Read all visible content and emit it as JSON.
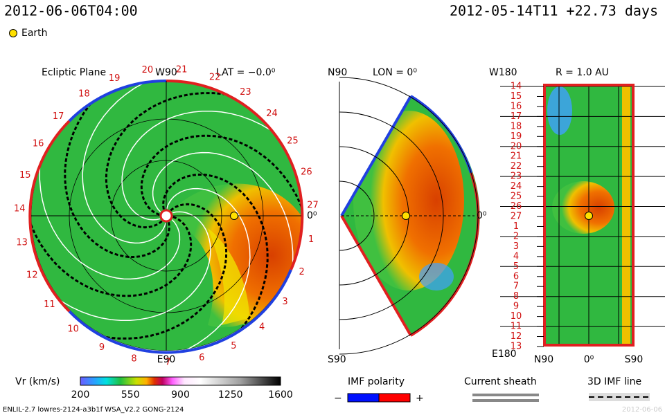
{
  "header": {
    "left": "2012-06-06T04:00",
    "right": "2012-05-14T11 +22.73 days"
  },
  "legend": {
    "earth": "Earth"
  },
  "ecliptic": {
    "title": "Ecliptic Plane",
    "top": "W90",
    "bottom": "E90",
    "right": "0⁰",
    "lat": "LAT = −0.0⁰",
    "carrington": [
      "1",
      "2",
      "3",
      "4",
      "5",
      "6",
      "7",
      "8",
      "9",
      "10",
      "11",
      "12",
      "13",
      "14",
      "15",
      "16",
      "17",
      "18",
      "19",
      "20",
      "21",
      "22",
      "23",
      "24",
      "25",
      "26",
      "27"
    ]
  },
  "meridional": {
    "top": "N90",
    "title": "LON = 0⁰",
    "bottom": "S90",
    "right": "0⁰"
  },
  "sphere": {
    "top": "W180",
    "title": "R = 1.0 AU",
    "bottom": "E180",
    "x_labels": [
      "N90",
      "0⁰",
      "S90"
    ],
    "y_labels": [
      "14",
      "15",
      "16",
      "17",
      "18",
      "19",
      "20",
      "21",
      "22",
      "23",
      "24",
      "25",
      "26",
      "27",
      "1",
      "2",
      "3",
      "4",
      "5",
      "6",
      "7",
      "8",
      "9",
      "10",
      "11",
      "12",
      "13"
    ]
  },
  "colorbar": {
    "label": "Vr (km/s)",
    "ticks": [
      200,
      550,
      900,
      1250,
      1600
    ]
  },
  "keys": {
    "polarity": "IMF polarity",
    "minus": "−",
    "plus": "+",
    "sheath": "Current sheath",
    "imf_line": "3D IMF line"
  },
  "footer": {
    "left": "ENLIL-2.7 lowres-2124-a3b1f WSA_V2.2 GONG-2124",
    "right": "2012-06-06"
  }
}
